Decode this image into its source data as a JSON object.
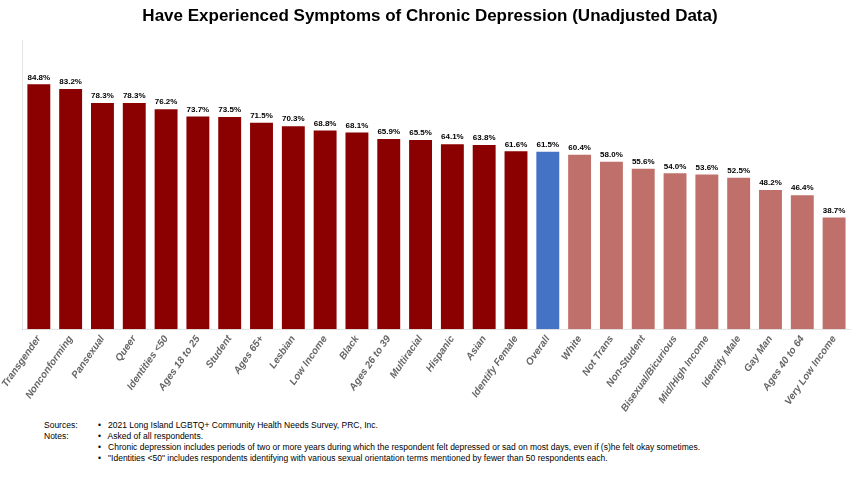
{
  "chart_data": {
    "type": "bar",
    "title": "Have Experienced Symptoms of Chronic Depression (Unadjusted Data)",
    "categories": [
      "Transgender",
      "Nonconforming",
      "Pansexual",
      "Queer",
      "Identities <50",
      "Ages 18 to 25",
      "Student",
      "Ages 65+",
      "Lesbian",
      "Low Income",
      "Black",
      "Ages 26 to 39",
      "Multiracial",
      "Hispanic",
      "Asian",
      "Identify Female",
      "Overall",
      "White",
      "Not Trans",
      "Non-Student",
      "Bisexual/Bicurious",
      "Mid/High Income",
      "Identify Male",
      "Gay Man",
      "Ages 40 to 64",
      "Very Low Income"
    ],
    "values": [
      84.8,
      83.2,
      78.3,
      78.3,
      76.2,
      73.7,
      73.5,
      71.5,
      70.3,
      68.8,
      68.1,
      65.9,
      65.5,
      64.1,
      63.8,
      61.6,
      61.5,
      60.4,
      58.0,
      55.6,
      54.0,
      53.6,
      52.5,
      48.2,
      46.4,
      38.7
    ],
    "value_labels": [
      "84.8%",
      "83.2%",
      "78.3%",
      "78.3%",
      "76.2%",
      "73.7%",
      "73.5%",
      "71.5%",
      "70.3%",
      "68.8%",
      "68.1%",
      "65.9%",
      "65.5%",
      "64.1%",
      "63.8%",
      "61.6%",
      "61.5%",
      "60.4%",
      "58.0%",
      "55.6%",
      "54.0%",
      "53.6%",
      "52.5%",
      "48.2%",
      "46.4%",
      "38.7%"
    ],
    "colors": [
      "#8B0000",
      "#8B0000",
      "#8B0000",
      "#8B0000",
      "#8B0000",
      "#8B0000",
      "#8B0000",
      "#8B0000",
      "#8B0000",
      "#8B0000",
      "#8B0000",
      "#8B0000",
      "#8B0000",
      "#8B0000",
      "#8B0000",
      "#8B0000",
      "#4472C4",
      "#C0706A",
      "#C0706A",
      "#C0706A",
      "#C0706A",
      "#C0706A",
      "#C0706A",
      "#C0706A",
      "#C0706A",
      "#C0706A"
    ],
    "ylim": [
      0,
      100
    ],
    "grid": false,
    "tick_labels": "x",
    "data_labels": true,
    "annotations": [
      {
        "heading": "Sources:",
        "lines": [
          "•   2021 Long Island LGBTQ+ Community Health Needs Survey, PRC, Inc."
        ]
      },
      {
        "heading": "Notes:",
        "lines": [
          "•   Asked of all respondents.",
          "•   Chronic depression includes periods of two or more years during which the respondent felt depressed or sad on most days, even if (s)he felt okay sometimes.",
          "•   \"Identities <50\" includes respondents identifying with various sexual orientation terms mentioned by fewer than 50 respondents each."
        ]
      }
    ]
  }
}
